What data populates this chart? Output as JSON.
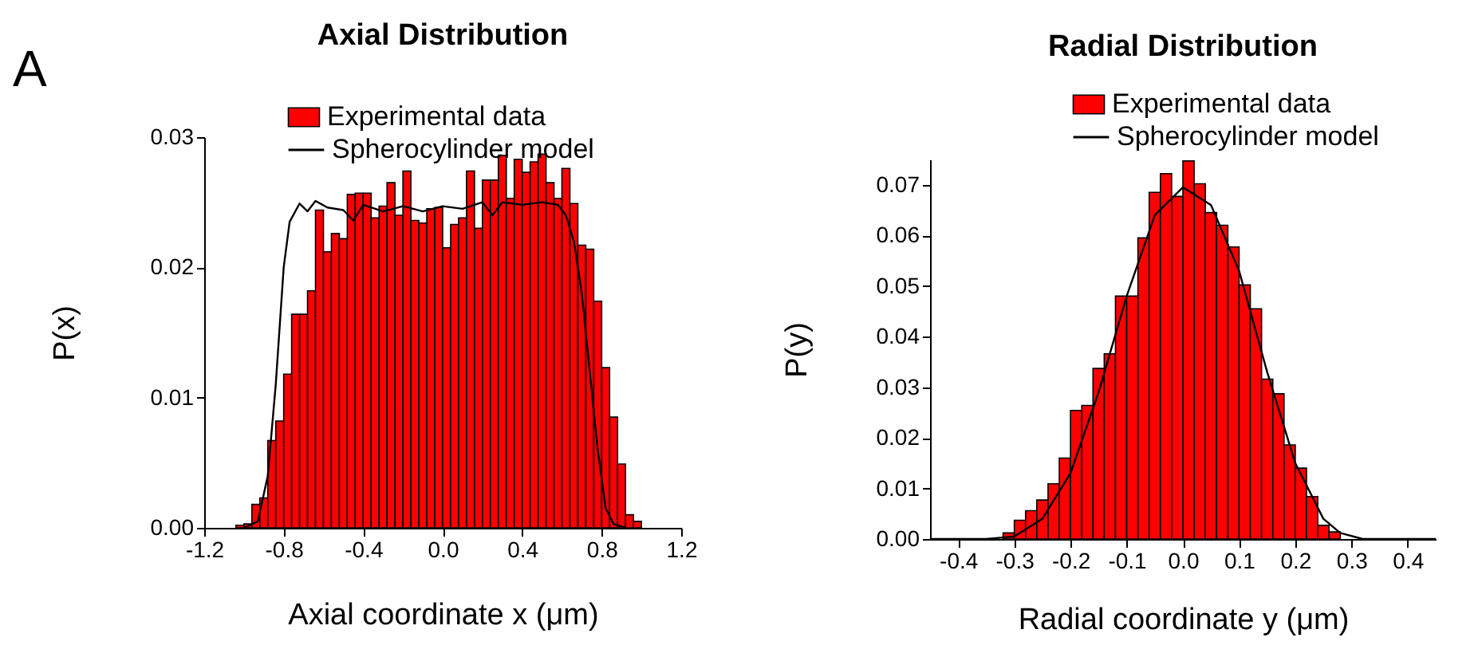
{
  "chart_data": [
    {
      "type": "histogram",
      "title": "Axial Distribution",
      "xlabel": "Axial coordinate x (μm)",
      "ylabel": "P(x)",
      "annotations": [
        "A"
      ],
      "legend": "top",
      "xlim": [
        -1.2,
        1.2
      ],
      "xticks": [
        -1.2,
        -0.8,
        -0.4,
        {
          "value": 0,
          "label": "0.0"
        },
        0.4,
        0.8,
        1.2
      ],
      "ylim": [
        0,
        0.03
      ],
      "yticks": [
        {
          "value": 0,
          "label": "0.00"
        },
        0.01,
        0.02,
        0.03
      ],
      "series": [
        {
          "name": "Experimental data",
          "type": "histogram",
          "color": "#ff0000",
          "bins": [
            -1.04,
            -1.0,
            -0.96,
            -0.92,
            -0.88,
            -0.84,
            -0.8,
            -0.76,
            -0.72,
            -0.68,
            -0.64,
            -0.6,
            -0.56,
            -0.52,
            -0.48,
            -0.44,
            -0.4,
            -0.36,
            -0.32,
            -0.28,
            -0.24,
            -0.2,
            -0.16,
            -0.12,
            -0.08,
            -0.04,
            0,
            0.04,
            0.08,
            0.12,
            0.16,
            0.2,
            0.24,
            0.28,
            0.32,
            0.36,
            0.4,
            0.44,
            0.48,
            0.52,
            0.56,
            0.6,
            0.64,
            0.68,
            0.72,
            0.76,
            0.8,
            0.84,
            0.88,
            0.92,
            0.96,
            1.0
          ],
          "values": [
            0.0002,
            0.0003,
            0.0018,
            0.0023,
            0.0067,
            0.0082,
            0.0118,
            0.0164,
            0.0164,
            0.0182,
            0.0244,
            0.0212,
            0.0226,
            0.0222,
            0.0256,
            0.0257,
            0.0257,
            0.0238,
            0.0247,
            0.0265,
            0.024,
            0.0274,
            0.0236,
            0.0234,
            0.0245,
            0.0246,
            0.0215,
            0.0233,
            0.0238,
            0.0274,
            0.023,
            0.0267,
            0.0267,
            0.0286,
            0.0253,
            0.0283,
            0.0273,
            0.0281,
            0.0287,
            0.0265,
            0.0253,
            0.0276,
            0.0249,
            0.0217,
            0.0214,
            0.0174,
            0.0123,
            0.0085,
            0.0049,
            0.001,
            0.0005
          ]
        },
        {
          "name": "Spherocylinder model",
          "type": "line",
          "color": "#000000",
          "x": [
            -1.0,
            -0.93,
            -0.88,
            -0.84,
            -0.8,
            -0.77,
            -0.72,
            -0.68,
            -0.64,
            -0.58,
            -0.5,
            -0.45,
            -0.4,
            -0.3,
            -0.2,
            -0.1,
            0.0,
            0.1,
            0.2,
            0.25,
            0.3,
            0.4,
            0.5,
            0.58,
            0.62,
            0.66,
            0.7,
            0.74,
            0.78,
            0.82,
            0.86,
            0.92
          ],
          "values": [
            0,
            0.0005,
            0.004,
            0.011,
            0.02,
            0.0235,
            0.0249,
            0.0243,
            0.0251,
            0.0246,
            0.0244,
            0.0236,
            0.0248,
            0.0243,
            0.0247,
            0.0243,
            0.0247,
            0.0245,
            0.025,
            0.024,
            0.025,
            0.0248,
            0.025,
            0.0248,
            0.024,
            0.022,
            0.018,
            0.012,
            0.006,
            0.0015,
            0.0003,
            0
          ]
        }
      ]
    },
    {
      "type": "histogram",
      "title": "Radial Distribution",
      "xlabel": "Radial coordinate y (μm)",
      "ylabel": "P(y)",
      "legend": "top",
      "xlim": [
        -0.45,
        0.45
      ],
      "xticks": [
        -0.4,
        -0.3,
        -0.2,
        -0.1,
        {
          "value": 0,
          "label": "0.0"
        },
        0.1,
        0.2,
        0.3,
        0.4
      ],
      "ylim": [
        0,
        0.075
      ],
      "yticks": [
        {
          "value": 0,
          "label": "0.00"
        },
        0.01,
        0.02,
        0.03,
        0.04,
        0.05,
        0.06,
        0.07
      ],
      "series": [
        {
          "name": "Experimental data",
          "type": "histogram",
          "color": "#ff0000",
          "bins": [
            -0.32,
            -0.3,
            -0.28,
            -0.26,
            -0.24,
            -0.22,
            -0.2,
            -0.18,
            -0.16,
            -0.14,
            -0.12,
            -0.1,
            -0.08,
            -0.06,
            -0.04,
            -0.02,
            0,
            0.02,
            0.04,
            0.06,
            0.08,
            0.1,
            0.12,
            0.14,
            0.16,
            0.18,
            0.2,
            0.22,
            0.24,
            0.26,
            0.28
          ],
          "values": [
            0.0012,
            0.0037,
            0.0056,
            0.0077,
            0.0109,
            0.016,
            0.0254,
            0.0264,
            0.0337,
            0.0366,
            0.048,
            0.048,
            0.0595,
            0.0685,
            0.0722,
            0.0677,
            0.0747,
            0.0702,
            0.0645,
            0.062,
            0.0577,
            0.0502,
            0.0455,
            0.0316,
            0.0287,
            0.0186,
            0.014,
            0.0084,
            0.0027,
            0.0014
          ]
        },
        {
          "name": "Spherocylinder model",
          "type": "line",
          "color": "#000000",
          "x": [
            -0.45,
            -0.35,
            -0.3,
            -0.25,
            -0.2,
            -0.15,
            -0.1,
            -0.05,
            0.0,
            0.05,
            0.1,
            0.15,
            0.2,
            0.25,
            0.28,
            0.32,
            0.45
          ],
          "values": [
            0,
            0,
            0.0005,
            0.004,
            0.013,
            0.029,
            0.048,
            0.064,
            0.0695,
            0.066,
            0.053,
            0.033,
            0.015,
            0.004,
            0.0012,
            0,
            0
          ]
        }
      ]
    }
  ]
}
